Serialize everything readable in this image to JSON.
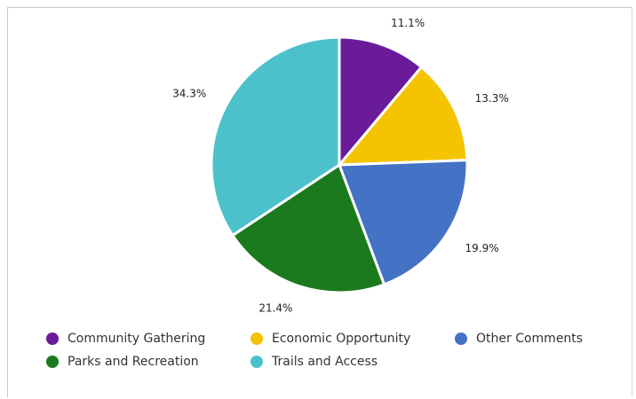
{
  "chart_data": {
    "type": "pie",
    "slices": [
      {
        "name": "Community Gathering",
        "value": 11.1,
        "label": "11.1%",
        "color": "#6a1b9a"
      },
      {
        "name": "Economic Opportunity",
        "value": 13.3,
        "label": "13.3%",
        "color": "#f5c400"
      },
      {
        "name": "Other Comments",
        "value": 19.9,
        "label": "19.9%",
        "color": "#4472c4"
      },
      {
        "name": "Parks and Recreation",
        "value": 21.4,
        "label": "21.4%",
        "color": "#1b7a1e"
      },
      {
        "name": "Trails and Access",
        "value": 34.3,
        "label": "34.3%",
        "color": "#4cc1cc"
      }
    ],
    "legend_position": "bottom-left"
  },
  "legend": {
    "items": [
      {
        "label": "Community Gathering",
        "color": "#6a1b9a"
      },
      {
        "label": "Economic Opportunity",
        "color": "#f5c400"
      },
      {
        "label": "Other Comments",
        "color": "#4472c4"
      },
      {
        "label": "Parks and Recreation",
        "color": "#1b7a1e"
      },
      {
        "label": "Trails and Access",
        "color": "#4cc1cc"
      }
    ]
  }
}
